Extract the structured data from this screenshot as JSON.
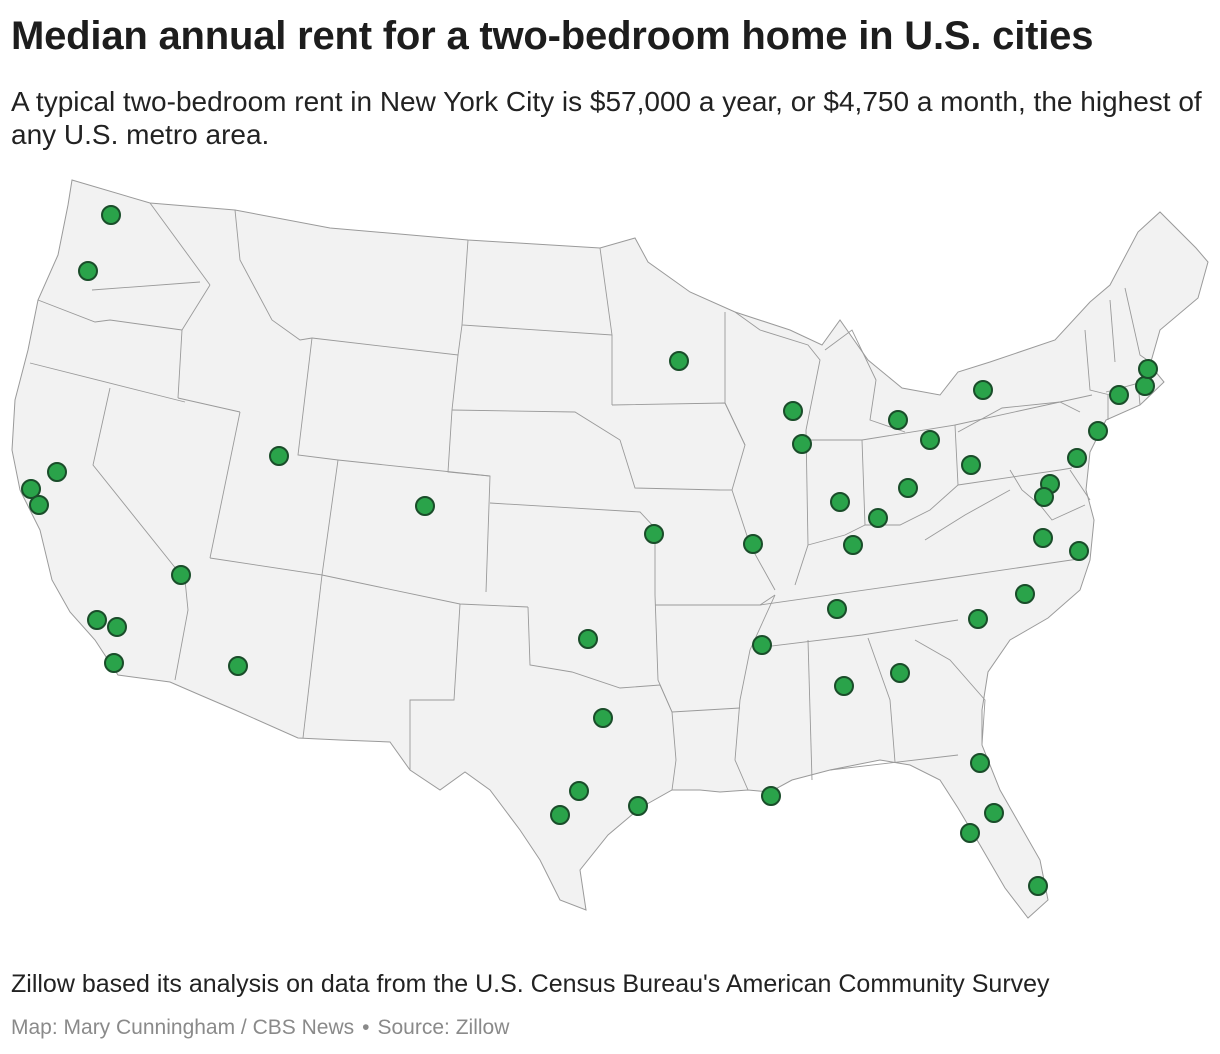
{
  "header": {
    "title": "Median annual rent for a two-bedroom home in U.S. cities",
    "subtitle": "A typical two-bedroom rent in New York City is $57,000 a year, or $4,750 a month, the highest of any U.S. metro area."
  },
  "footer": {
    "note": "Zillow based its analysis on data from the U.S. Census Bureau's American Community Survey",
    "credit": "Map: Mary Cunningham / CBS News",
    "separator": "•",
    "source": "Source: Zillow"
  },
  "map": {
    "land_color": "#f2f2f2",
    "border_color": "#9a9a9a",
    "marker_color": "#2aa34a",
    "marker_outline": "#1a4d2a",
    "markers": [
      {
        "region": "Washington"
      },
      {
        "region": "Oregon"
      },
      {
        "region": "California"
      },
      {
        "region": "California"
      },
      {
        "region": "California"
      },
      {
        "region": "California"
      },
      {
        "region": "California"
      },
      {
        "region": "California"
      },
      {
        "region": "Nevada"
      },
      {
        "region": "Utah"
      },
      {
        "region": "Arizona"
      },
      {
        "region": "Colorado"
      },
      {
        "region": "Minnesota"
      },
      {
        "region": "Missouri"
      },
      {
        "region": "Missouri"
      },
      {
        "region": "Oklahoma"
      },
      {
        "region": "Texas"
      },
      {
        "region": "Texas"
      },
      {
        "region": "Texas"
      },
      {
        "region": "Texas"
      },
      {
        "region": "Louisiana"
      },
      {
        "region": "Wisconsin"
      },
      {
        "region": "Illinois"
      },
      {
        "region": "Indiana"
      },
      {
        "region": "Kentucky"
      },
      {
        "region": "Tennessee"
      },
      {
        "region": "Tennessee"
      },
      {
        "region": "Alabama"
      },
      {
        "region": "Georgia"
      },
      {
        "region": "Michigan"
      },
      {
        "region": "Ohio"
      },
      {
        "region": "Ohio"
      },
      {
        "region": "Ohio"
      },
      {
        "region": "Pennsylvania"
      },
      {
        "region": "New York"
      },
      {
        "region": "Pennsylvania"
      },
      {
        "region": "New York"
      },
      {
        "region": "Maryland"
      },
      {
        "region": "Washington, D.C."
      },
      {
        "region": "Virginia"
      },
      {
        "region": "Virginia"
      },
      {
        "region": "North Carolina"
      },
      {
        "region": "North Carolina"
      },
      {
        "region": "Florida"
      },
      {
        "region": "Florida"
      },
      {
        "region": "Florida"
      },
      {
        "region": "Florida"
      },
      {
        "region": "Connecticut"
      },
      {
        "region": "Rhode Island"
      },
      {
        "region": "Massachusetts"
      }
    ]
  }
}
